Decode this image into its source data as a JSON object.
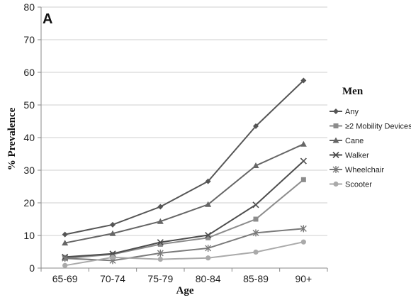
{
  "chart_data": {
    "type": "line",
    "panel_label": "A",
    "xlabel": "Age",
    "ylabel": "% Prevalence",
    "categories": [
      "65-69",
      "70-74",
      "75-79",
      "80-84",
      "85-89",
      "90+"
    ],
    "ylim": [
      0,
      80
    ],
    "yticks": [
      0,
      10,
      20,
      30,
      40,
      50,
      60,
      70,
      80
    ],
    "grid": "horizontal",
    "legend": {
      "title": "Men",
      "placement": "right"
    },
    "series": [
      {
        "name": "Any",
        "values": [
          10.3,
          13.3,
          18.8,
          26.6,
          43.5,
          57.5
        ],
        "color": "#555555",
        "marker": "diamond"
      },
      {
        "name": "≥2 Mobility Devices",
        "values": [
          3.0,
          4.2,
          7.3,
          9.3,
          15.0,
          27.1
        ],
        "color": "#8c8c8c",
        "marker": "square"
      },
      {
        "name": "Cane",
        "values": [
          7.7,
          10.6,
          14.3,
          19.5,
          31.4,
          38.0
        ],
        "color": "#666666",
        "marker": "triangle"
      },
      {
        "name": "Walker",
        "values": [
          3.4,
          4.4,
          7.9,
          10.1,
          19.4,
          32.8
        ],
        "color": "#4d4d4d",
        "marker": "x"
      },
      {
        "name": "Wheelchair",
        "values": [
          3.0,
          2.3,
          4.6,
          6.1,
          10.8,
          12.1
        ],
        "color": "#7a7a7a",
        "marker": "star"
      },
      {
        "name": "Scooter",
        "values": [
          0.8,
          3.3,
          2.7,
          3.1,
          4.9,
          8.0
        ],
        "color": "#aaaaaa",
        "marker": "circle"
      }
    ]
  }
}
